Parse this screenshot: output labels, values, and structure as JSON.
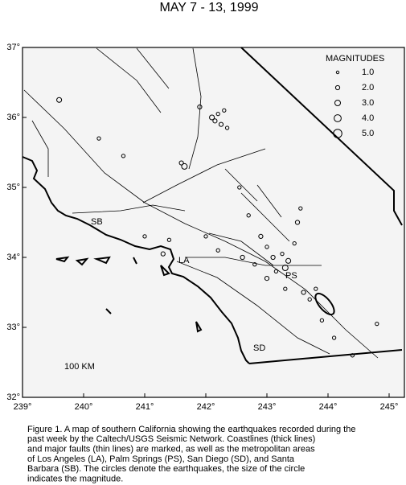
{
  "title": "MAY 7 - 13, 1999",
  "map": {
    "xlim": [
      239,
      245.25
    ],
    "ylim": [
      32,
      37
    ],
    "xticks": [
      {
        "value": 239,
        "label": "239°"
      },
      {
        "value": 240,
        "label": "240°"
      },
      {
        "value": 241,
        "label": "241°"
      },
      {
        "value": 242,
        "label": "242°"
      },
      {
        "value": 243,
        "label": "243°"
      },
      {
        "value": 244,
        "label": "244°"
      },
      {
        "value": 245,
        "label": "245°"
      }
    ],
    "yticks": [
      {
        "value": 32,
        "label": "32°"
      },
      {
        "value": 33,
        "label": "33°"
      },
      {
        "value": 34,
        "label": "34°"
      },
      {
        "value": 35,
        "label": "35°"
      },
      {
        "value": 36,
        "label": "36°"
      },
      {
        "value": 37,
        "label": "37°"
      }
    ],
    "places": [
      "SB",
      "LA",
      "PS",
      "SD"
    ],
    "scale": "100 KM",
    "earthquakes": {
      "lon": [
        241.9,
        242.1,
        242.15,
        242.2,
        242.25,
        242.3,
        242.35,
        241.65,
        241.6,
        240.25,
        239.6,
        242.55,
        242.7,
        242.9,
        243.0,
        243.1,
        243.25,
        243.35,
        243.45,
        243.5,
        243.3,
        242.0,
        242.2,
        242.6,
        242.8,
        243.0,
        243.15,
        243.6,
        243.7,
        243.8,
        241.0,
        241.4,
        240.65,
        241.3,
        243.3,
        243.9,
        244.1,
        243.55,
        244.4,
        244.8
      ],
      "lat": [
        36.15,
        36.0,
        35.95,
        36.05,
        35.9,
        36.1,
        35.85,
        35.3,
        35.35,
        35.7,
        36.25,
        35.0,
        34.6,
        34.3,
        34.15,
        34.0,
        34.05,
        33.95,
        34.2,
        34.5,
        33.85,
        34.3,
        34.1,
        34.0,
        33.9,
        33.7,
        33.8,
        33.5,
        33.4,
        33.55,
        34.3,
        34.25,
        35.45,
        34.05,
        33.55,
        33.1,
        32.85,
        34.7,
        32.6,
        33.05
      ],
      "mag": [
        2.0,
        2.5,
        2.0,
        1.5,
        2.0,
        1.5,
        1.5,
        3.0,
        2.0,
        1.5,
        2.5,
        1.5,
        1.5,
        2.0,
        1.5,
        2.0,
        1.5,
        2.5,
        1.5,
        2.0,
        3.0,
        1.5,
        1.5,
        2.0,
        1.5,
        2.0,
        1.5,
        2.0,
        1.5,
        1.5,
        1.5,
        1.5,
        1.5,
        2.0,
        1.5,
        1.5,
        1.5,
        1.5,
        1.5,
        1.5
      ]
    },
    "legend": {
      "title": "MAGNITUDES",
      "entries": [
        {
          "value": 1,
          "label": "1.0"
        },
        {
          "value": 2,
          "label": "2.0"
        },
        {
          "value": 3,
          "label": "3.0"
        },
        {
          "value": 4,
          "label": "4.0"
        },
        {
          "value": 5,
          "label": "5.0"
        }
      ]
    }
  },
  "caption": [
    "Figure 1. A map of southern California showing the earthquakes recorded during the",
    "past week by the Caltech/USGS Seismic Network.  Coastlines (thick lines)",
    "and major faults (thin lines) are marked, as well as the metropolitan areas",
    "of Los Angeles (LA), Palm Springs (PS), San Diego (SD), and Santa",
    "Barbara (SB).  The circles denote the earthquakes, the size of the circle",
    "indicates the magnitude."
  ]
}
